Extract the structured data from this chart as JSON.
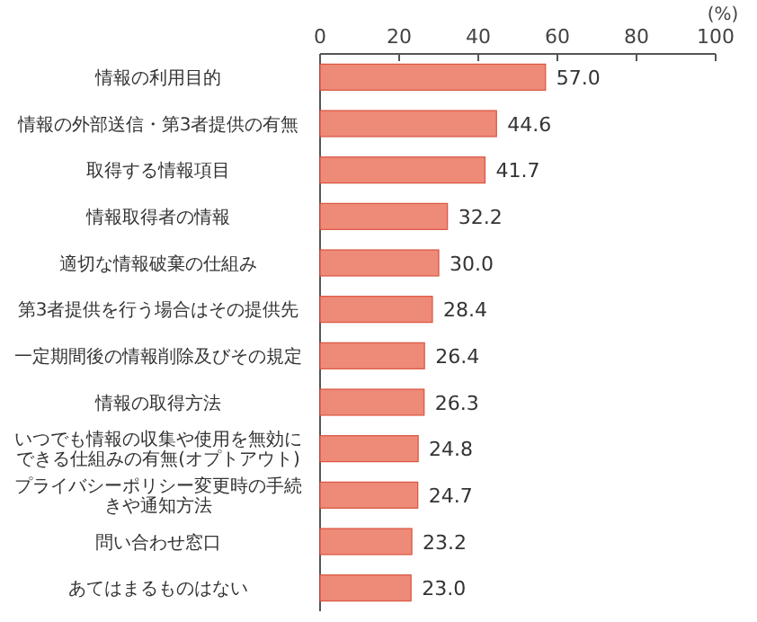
{
  "chart_data": {
    "type": "bar",
    "orientation": "horizontal",
    "xlabel": "(%)",
    "categories": [
      "情報の利用目的",
      "情報の外部送信・第3者提供の有無",
      "取得する情報項目",
      "情報取得者の情報",
      "適切な情報破棄の仕組み",
      "第3者提供を行う場合はその提供先",
      "一定期間後の情報削除及びその規定",
      "情報の取得方法",
      "いつでも情報の収集や使用を無効にできる仕組みの有無(オプトアウト)",
      "プライバシーポリシー変更時の手続きや通知方法",
      "問い合わせ窓口",
      "あてはまるものはない"
    ],
    "values": [
      57.0,
      44.6,
      41.7,
      32.2,
      30.0,
      28.4,
      26.4,
      26.3,
      24.8,
      24.7,
      23.2,
      23.0
    ],
    "value_labels": [
      "57.0",
      "44.6",
      "41.7",
      "32.2",
      "30.0",
      "28.4",
      "26.4",
      "26.3",
      "24.8",
      "24.7",
      "23.2",
      "23.0"
    ],
    "color": "#ee8a78",
    "xlim": [
      0,
      100
    ],
    "xticks": [
      0,
      20,
      40,
      60,
      80,
      100
    ],
    "grid": false
  }
}
